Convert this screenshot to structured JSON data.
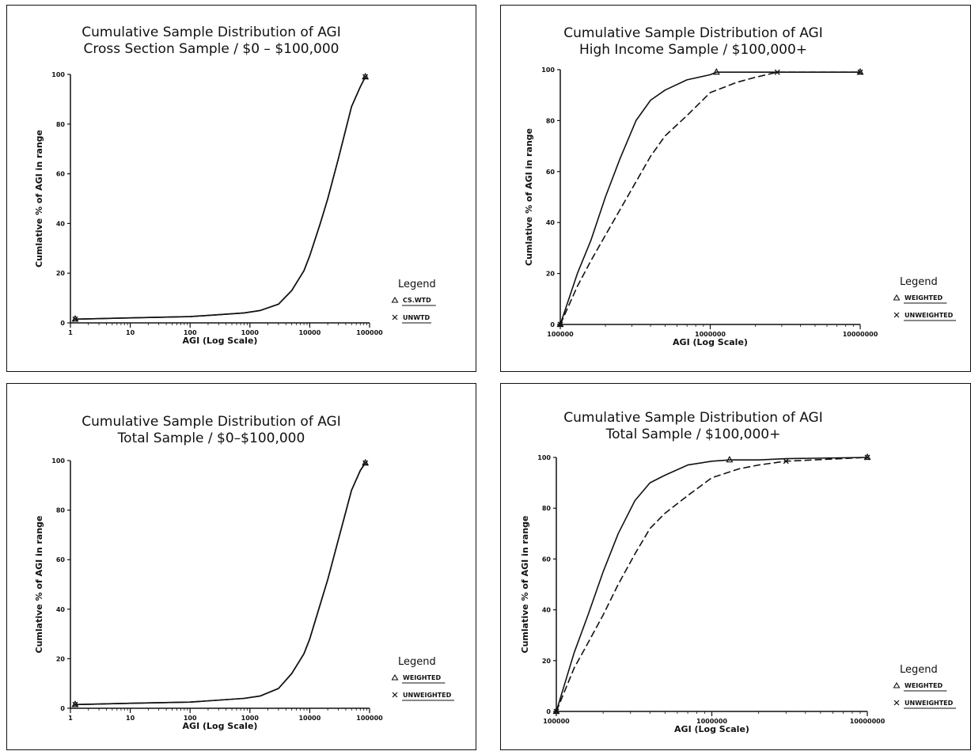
{
  "chart_data": [
    {
      "type": "line",
      "title": "Cumulative Sample Distribution of AGI",
      "subtitle": "Cross Section Sample / $0 – $100,000",
      "xlabel": "AGI (Log Scale)",
      "ylabel": "Cumlative % of AGI in range",
      "xscale": "log",
      "xlim": [
        1,
        100000
      ],
      "ylim": [
        0,
        100
      ],
      "x_ticks": [
        "1",
        "10",
        "100",
        "1000",
        "10000",
        "100000"
      ],
      "y_ticks": [
        "0",
        "20",
        "40",
        "60",
        "80",
        "100"
      ],
      "grid": false,
      "legend": {
        "title": "Legend",
        "position": "right"
      },
      "series": [
        {
          "name": "CS.WTD",
          "marker": "triangle",
          "dash": "solid",
          "x": [
            1.2,
            10,
            100,
            800,
            1500,
            3000,
            5000,
            8000,
            10000,
            15000,
            20000,
            30000,
            50000,
            70000,
            85000
          ],
          "y": [
            1.5,
            2,
            2.5,
            4,
            5,
            7.5,
            13,
            21,
            27,
            40,
            50,
            66,
            87,
            95,
            99
          ]
        },
        {
          "name": "UNWTD",
          "marker": "x",
          "dash": "solid",
          "x": [
            1.2,
            10,
            100,
            800,
            1500,
            3000,
            5000,
            8000,
            10000,
            15000,
            20000,
            30000,
            50000,
            70000,
            85000
          ],
          "y": [
            1.5,
            2,
            2.5,
            4,
            5,
            7.5,
            13,
            21,
            27,
            40,
            50,
            66,
            87,
            95,
            99
          ]
        }
      ]
    },
    {
      "type": "line",
      "title": "Cumulative Sample Distribution of AGI",
      "subtitle": "High Income Sample / $100,000+",
      "xlabel": "AGI (Log Scale)",
      "ylabel": "Cumlative % of AGI in range",
      "xscale": "log",
      "xlim": [
        100000,
        10000000
      ],
      "ylim": [
        0,
        100
      ],
      "x_ticks": [
        "100000",
        "1000000",
        "10000000"
      ],
      "y_ticks": [
        "0",
        "20",
        "40",
        "60",
        "80",
        "100"
      ],
      "grid": false,
      "legend": {
        "title": "Legend",
        "position": "right"
      },
      "series": [
        {
          "name": "WEIGHTED",
          "marker": "triangle",
          "dash": "solid",
          "x": [
            100000,
            130000,
            160000,
            200000,
            250000,
            320000,
            400000,
            500000,
            700000,
            1000000,
            1100000,
            2000000,
            3000000,
            10000000
          ],
          "y": [
            0,
            20,
            33,
            50,
            65,
            80,
            88,
            92,
            96,
            98,
            99,
            99,
            99,
            99
          ]
        },
        {
          "name": "UNWEIGHTED",
          "marker": "x",
          "dash": "dashed",
          "x": [
            100000,
            130000,
            160000,
            200000,
            250000,
            320000,
            400000,
            500000,
            700000,
            1000000,
            1500000,
            2000000,
            2800000,
            10000000
          ],
          "y": [
            0,
            15,
            25,
            35,
            45,
            56,
            66,
            74,
            82,
            91,
            95,
            97,
            99,
            99
          ]
        }
      ]
    },
    {
      "type": "line",
      "title": "Cumulative Sample Distribution of AGI",
      "subtitle": "Total Sample / $0–$100,000",
      "xlabel": "AGI (Log Scale)",
      "ylabel": "Cumlative % of AGI in range",
      "xscale": "log",
      "xlim": [
        1,
        100000
      ],
      "ylim": [
        0,
        100
      ],
      "x_ticks": [
        "1",
        "10",
        "100",
        "1000",
        "10000",
        "100000"
      ],
      "y_ticks": [
        "0",
        "20",
        "40",
        "60",
        "80",
        "100"
      ],
      "grid": false,
      "legend": {
        "title": "Legend",
        "position": "right"
      },
      "series": [
        {
          "name": "WEIGHTED",
          "marker": "triangle",
          "dash": "solid",
          "x": [
            1.2,
            10,
            100,
            800,
            1500,
            3000,
            5000,
            8000,
            10000,
            15000,
            20000,
            30000,
            50000,
            70000,
            85000
          ],
          "y": [
            1.5,
            2,
            2.5,
            4,
            5,
            8,
            14,
            22,
            28,
            42,
            52,
            68,
            88,
            96,
            99
          ]
        },
        {
          "name": "UNWEIGHTED",
          "marker": "x",
          "dash": "solid",
          "x": [
            1.2,
            10,
            100,
            800,
            1500,
            3000,
            5000,
            8000,
            10000,
            15000,
            20000,
            30000,
            50000,
            70000,
            85000
          ],
          "y": [
            1.5,
            2,
            2.5,
            4,
            5,
            8,
            14,
            22,
            28,
            42,
            52,
            68,
            88,
            96,
            99
          ]
        }
      ]
    },
    {
      "type": "line",
      "title": "Cumulative Sample Distribution of AGI",
      "subtitle": "Total Sample / $100,000+",
      "xlabel": "AGI (Log Scale)",
      "ylabel": "Cumlative % of AGI in range",
      "xscale": "log",
      "xlim": [
        100000,
        10000000
      ],
      "ylim": [
        0,
        100
      ],
      "x_ticks": [
        "100000",
        "1000000",
        "10000000"
      ],
      "y_ticks": [
        "0",
        "20",
        "40",
        "60",
        "80",
        "100"
      ],
      "grid": false,
      "legend": {
        "title": "Legend",
        "position": "right"
      },
      "series": [
        {
          "name": "WEIGHTED",
          "marker": "triangle",
          "dash": "solid",
          "x": [
            100000,
            130000,
            160000,
            200000,
            250000,
            320000,
            400000,
            500000,
            700000,
            1000000,
            1300000,
            2000000,
            3000000,
            10000000
          ],
          "y": [
            0,
            23,
            38,
            55,
            70,
            83,
            90,
            93,
            97,
            98.5,
            99,
            99,
            99.5,
            100
          ]
        },
        {
          "name": "UNWEIGHTED",
          "marker": "x",
          "dash": "dashed",
          "x": [
            100000,
            130000,
            160000,
            200000,
            250000,
            320000,
            400000,
            500000,
            700000,
            1000000,
            1500000,
            2000000,
            3000000,
            10000000
          ],
          "y": [
            0,
            17,
            27,
            38,
            50,
            62,
            72,
            78,
            85,
            92,
            95.5,
            97,
            98.5,
            100
          ]
        }
      ]
    }
  ]
}
